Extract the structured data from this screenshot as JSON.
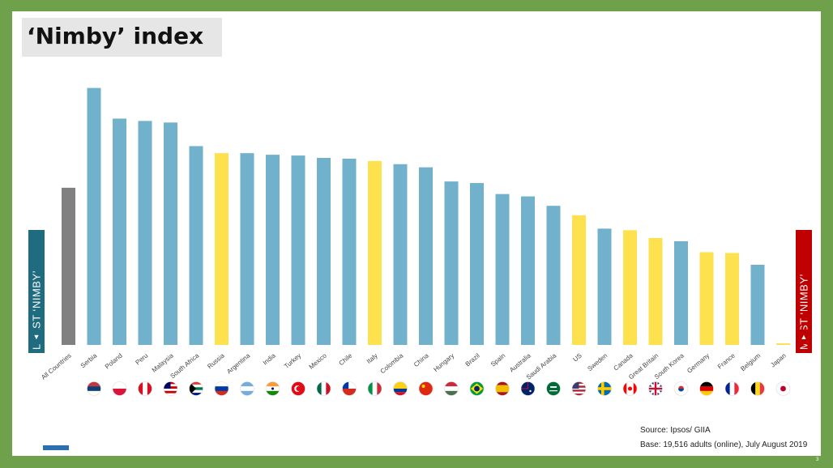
{
  "title": "‘Nimby’ index",
  "least_label": "LEAST ‘NIMBY’",
  "most_label": "MOST ‘NIMBY’",
  "source": "Source: Ipsos/ GIIA",
  "base": "Base: 19,516 adults (online), July August 2019",
  "page_number": "3",
  "colors": {
    "blue": "#71b1cb",
    "yellow": "#fee14f",
    "gray": "#808080",
    "least": "#1f6b80",
    "most": "#c00000",
    "frame": "#6fa04b"
  },
  "chart_data": {
    "type": "bar",
    "categories": [
      "All Countries",
      "Serbia",
      "Poland",
      "Peru",
      "Malaysia",
      "South Africa",
      "Russia",
      "Argentina",
      "India",
      "Turkey",
      "Mexico",
      "Chile",
      "Italy",
      "Colombia",
      "China",
      "Hungary",
      "Brazil",
      "Spain",
      "Australia",
      "Saudi Arabia",
      "US",
      "Sweden",
      "Canada",
      "Great Britain",
      "South Korea",
      "Germany",
      "France",
      "Belgium",
      "Japan"
    ],
    "values": [
      200,
      327,
      288,
      285,
      283,
      253,
      244,
      244,
      242,
      241,
      238,
      237,
      234,
      230,
      226,
      208,
      206,
      192,
      189,
      177,
      165,
      148,
      146,
      136,
      132,
      118,
      117,
      102,
      2
    ],
    "colors": [
      "gray",
      "blue",
      "blue",
      "blue",
      "blue",
      "blue",
      "yellow",
      "blue",
      "blue",
      "blue",
      "blue",
      "blue",
      "yellow",
      "blue",
      "blue",
      "blue",
      "blue",
      "blue",
      "blue",
      "blue",
      "yellow",
      "blue",
      "yellow",
      "yellow",
      "blue",
      "yellow",
      "yellow",
      "blue",
      "yellow"
    ],
    "flags": [
      "",
      "serbia-flag-icon",
      "poland-flag-icon",
      "peru-flag-icon",
      "malaysia-flag-icon",
      "south-africa-flag-icon",
      "russia-flag-icon",
      "argentina-flag-icon",
      "india-flag-icon",
      "turkey-flag-icon",
      "mexico-flag-icon",
      "chile-flag-icon",
      "italy-flag-icon",
      "colombia-flag-icon",
      "china-flag-icon",
      "hungary-flag-icon",
      "brazil-flag-icon",
      "spain-flag-icon",
      "australia-flag-icon",
      "saudi-arabia-flag-icon",
      "us-flag-icon",
      "sweden-flag-icon",
      "canada-flag-icon",
      "great-britain-flag-icon",
      "south-korea-flag-icon",
      "germany-flag-icon",
      "france-flag-icon",
      "belgium-flag-icon",
      "japan-flag-icon"
    ],
    "ylim": [
      0,
      340
    ],
    "grid": false,
    "legend": "none"
  }
}
